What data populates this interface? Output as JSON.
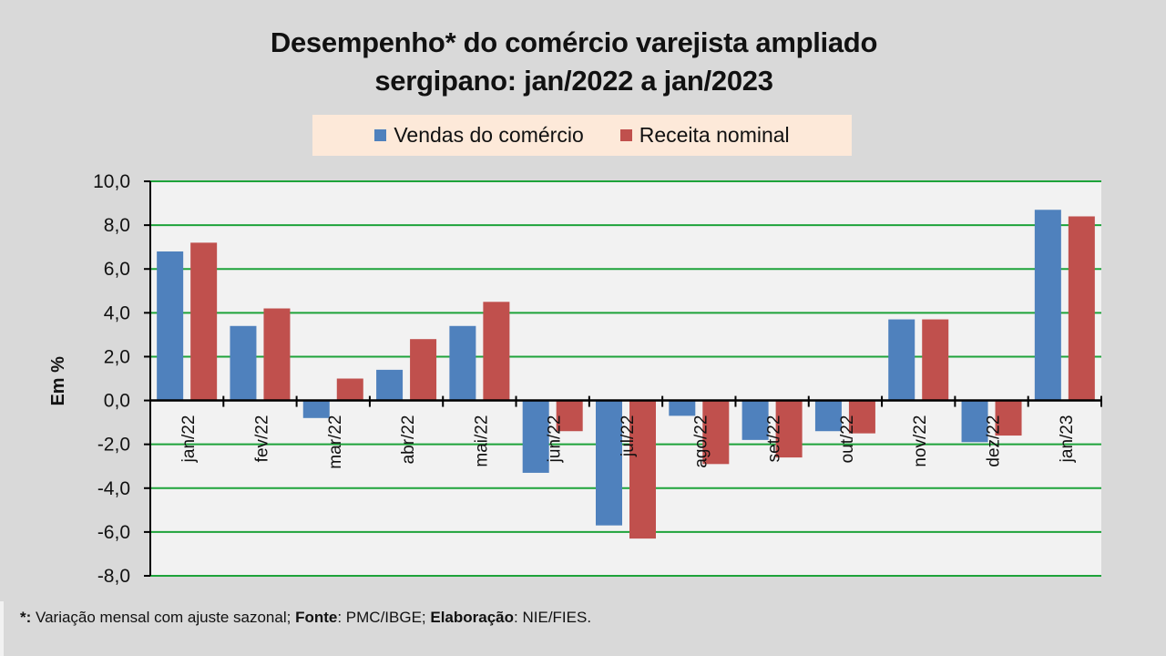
{
  "title_line1": "Desempenho* do comércio varejista ampliado",
  "title_line2": "sergipano: jan/2022 a jan/2023",
  "footer": {
    "note_mark": "*:",
    "note_text": " Variação mensal com ajuste sazonal; ",
    "source_label": "Fonte",
    "source_text": ": PMC/IBGE; ",
    "author_label": "Elaboração",
    "author_text": ": NIE/FIES."
  },
  "colors": {
    "vendas": "#4f81bd",
    "receita": "#c0504d",
    "grid": "#1ea33a",
    "plot_bg": "#f2f2f2",
    "legend_bg": "#fde9d9"
  },
  "chart_data": {
    "type": "bar",
    "title": "Desempenho* do comércio varejista ampliado sergipano: jan/2022 a jan/2023",
    "xlabel": "",
    "ylabel": "Em %",
    "ylim": [
      -8,
      10
    ],
    "yticks": [
      10,
      8,
      6,
      4,
      2,
      0,
      -2,
      -4,
      -6,
      -8
    ],
    "ytick_labels": [
      "10,0",
      "8,0",
      "6,0",
      "4,0",
      "2,0",
      "0,0",
      "-2,0",
      "-4,0",
      "-6,0",
      "-8,0"
    ],
    "grid": true,
    "legend_position": "top-center",
    "categories": [
      "jan/22",
      "fev/22",
      "mar/22",
      "abr/22",
      "mai/22",
      "jun/22",
      "jul/22",
      "ago/22",
      "set/22",
      "out/22",
      "nov/22",
      "dez/22",
      "jan/23"
    ],
    "series": [
      {
        "name": "Vendas do comércio",
        "color": "#4f81bd",
        "values": [
          6.8,
          3.4,
          -0.8,
          1.4,
          3.4,
          -3.3,
          -5.7,
          -0.7,
          -1.8,
          -1.4,
          3.7,
          -1.9,
          8.7
        ]
      },
      {
        "name": "Receita nominal",
        "color": "#c0504d",
        "values": [
          7.2,
          4.2,
          1.0,
          2.8,
          4.5,
          -1.4,
          -6.3,
          -2.9,
          -2.6,
          -1.5,
          3.7,
          -1.6,
          8.4
        ]
      }
    ]
  }
}
